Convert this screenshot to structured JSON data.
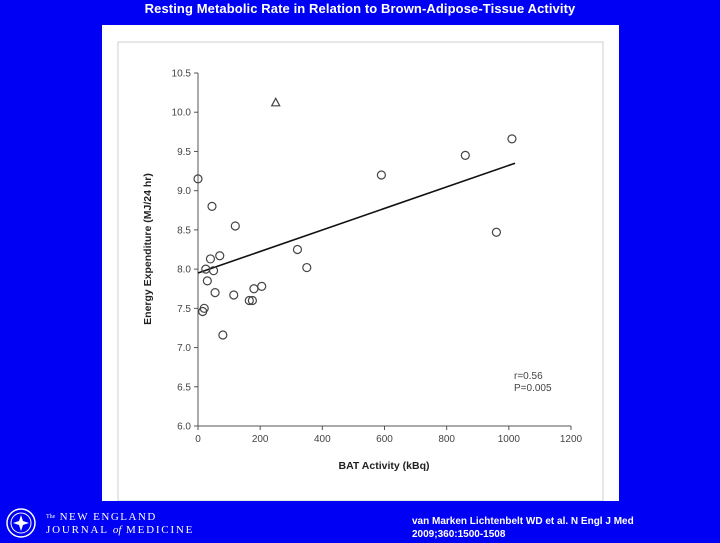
{
  "slide": {
    "title": "Resting Metabolic Rate in Relation to Brown-Adipose-Tissue Activity"
  },
  "footer": {
    "journal_line1_prefix": "The",
    "journal_line1": "NEW ENGLAND",
    "journal_line2_a": "JOURNAL",
    "journal_line2_of": "of",
    "journal_line2_b": "MEDICINE",
    "citation_line1": "van Marken Lichtenbelt WD et al. N Engl J Med",
    "citation_line2": "2009;360:1500-1508"
  },
  "colors": {
    "background": "#0000f5",
    "panel": "#ffffff",
    "axis": "#555555",
    "marker": "#444444",
    "fit_line": "#111111"
  },
  "chart_data": {
    "type": "scatter",
    "title": "",
    "xlabel": "BAT Activity (kBq)",
    "ylabel": "Energy Expenditure (MJ/24 hr)",
    "xlim": [
      0,
      1200
    ],
    "ylim": [
      6.0,
      10.5
    ],
    "xticks": [
      0,
      200,
      400,
      600,
      800,
      1000,
      1200
    ],
    "yticks": [
      6.0,
      6.5,
      7.0,
      7.5,
      8.0,
      8.5,
      9.0,
      9.5,
      10.0,
      10.5
    ],
    "xtick_labels": [
      "0",
      "200",
      "400",
      "600",
      "800",
      "1000",
      "1200"
    ],
    "ytick_labels": [
      "6.0",
      "6.5",
      "7.0",
      "7.5",
      "8.0",
      "8.5",
      "9.0",
      "9.5",
      "10.0",
      "10.5"
    ],
    "series": [
      {
        "name": "subjects",
        "marker": "circle",
        "x": [
          0,
          20,
          15,
          25,
          30,
          40,
          50,
          45,
          55,
          70,
          80,
          115,
          120,
          165,
          175,
          180,
          205,
          320,
          350,
          590,
          860,
          960,
          1010
        ],
        "y": [
          9.15,
          7.5,
          7.46,
          8.0,
          7.85,
          8.13,
          7.98,
          8.8,
          7.7,
          8.17,
          7.16,
          7.67,
          8.55,
          7.6,
          7.6,
          7.75,
          7.78,
          8.25,
          8.02,
          9.2,
          9.45,
          8.47,
          9.66
        ]
      },
      {
        "name": "outlier",
        "marker": "triangle",
        "x": [
          250
        ],
        "y": [
          10.12
        ]
      }
    ],
    "fit_line": {
      "x": [
        0,
        1020
      ],
      "y": [
        7.95,
        9.35
      ]
    },
    "annotations": [
      "r=0.56",
      "P=0.005"
    ]
  }
}
